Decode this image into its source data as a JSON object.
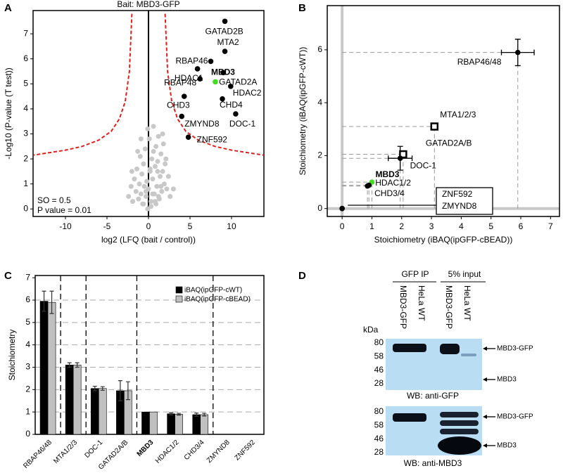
{
  "panels": [
    "A",
    "B",
    "C",
    "D"
  ],
  "chart_data": [
    {
      "type": "scatter",
      "title": "Bait: MBD3-GFP",
      "xlabel": "log2 (LFQ (bait / control))",
      "ylabel": "-Log10 (P-value (T test))",
      "xlim": [
        -13.9,
        13.9
      ],
      "ylim": [
        -0.3,
        7.93
      ],
      "xticks": [
        -10,
        -5,
        0,
        5,
        10
      ],
      "yticks": [
        0,
        1,
        2,
        3,
        4,
        5,
        6,
        7
      ],
      "annotations": [
        "SO = 0.5",
        "P value = 0.01"
      ],
      "background": {
        "color": "#c8c8c8",
        "x": [
          -2.4,
          -2.1,
          -1.9,
          -1.7,
          -1.5,
          -1.4,
          -1.2,
          -1.1,
          -1.0,
          -0.9,
          -0.8,
          -0.7,
          -0.6,
          -0.5,
          -0.4,
          -0.3,
          -0.2,
          -0.1,
          0.0,
          0.1,
          0.2,
          0.3,
          0.4,
          0.5,
          0.6,
          0.7,
          0.8,
          0.9,
          1.0,
          1.1,
          1.2,
          1.3,
          1.4,
          1.5,
          1.6,
          1.7,
          1.8,
          1.9,
          2.0,
          2.2,
          2.4,
          2.6,
          -0.6,
          0.3,
          0.5,
          0.8,
          1.2,
          1.5,
          -1.3,
          -0.9,
          0.2,
          0.9,
          1.7,
          2.1,
          -0.3,
          0.6,
          1.1,
          -2.0,
          3.0,
          -0.1
        ],
        "y": [
          0.5,
          0.9,
          0.3,
          1.2,
          0.7,
          1.6,
          0.4,
          1.0,
          2.1,
          0.6,
          1.4,
          0.2,
          1.8,
          0.9,
          2.4,
          0.5,
          1.1,
          3.2,
          0.8,
          2.8,
          1.5,
          0.3,
          2.0,
          1.2,
          3.3,
          0.6,
          1.7,
          2.5,
          0.9,
          1.9,
          2.9,
          0.4,
          1.3,
          2.2,
          0.7,
          1.5,
          2.6,
          1.0,
          1.8,
          0.8,
          1.3,
          0.5,
          0.2,
          0.1,
          0.6,
          0.3,
          0.5,
          0.9,
          2.3,
          2.8,
          1.6,
          0.2,
          3.0,
          2.0,
          0.7,
          2.3,
          1.5,
          1.5,
          0.8,
          0.0
        ]
      },
      "threshold": [
        {
          "color": "#e0201b",
          "x": [
            -2.0,
            -2.3,
            -2.8,
            -3.5,
            -4.5,
            -6,
            -8,
            -10,
            -13.9
          ],
          "y": [
            7.8,
            5.5,
            4.3,
            3.6,
            3.1,
            2.75,
            2.5,
            2.35,
            2.15
          ]
        },
        {
          "color": "#e0201b",
          "x": [
            2.0,
            2.3,
            2.8,
            3.5,
            4.5,
            6,
            8,
            10,
            13.9
          ],
          "y": [
            7.8,
            5.5,
            4.3,
            3.6,
            3.1,
            2.75,
            2.5,
            2.35,
            2.15
          ]
        }
      ],
      "hits": {
        "labels": [
          "GATAD2B",
          "MTA2",
          "RBAP46",
          "HDAC1",
          "MBD3",
          "GATAD2A",
          "RBAP48",
          "HDAC2",
          "CHD3",
          "CHD4",
          "ZMYND8",
          "DOC-1",
          "ZNF592"
        ],
        "x": [
          9.2,
          9.2,
          7.5,
          5.9,
          8.05,
          9.0,
          6.2,
          9.9,
          4.3,
          8.9,
          4.0,
          10.5,
          4.8
        ],
        "y": [
          7.5,
          6.3,
          5.9,
          5.6,
          5.08,
          5.45,
          5.2,
          4.9,
          4.5,
          4.4,
          3.7,
          3.8,
          2.87
        ],
        "colors": [
          "#000000",
          "#000000",
          "#000000",
          "#000000",
          "#44dd22",
          "#000000",
          "#000000",
          "#000000",
          "#000000",
          "#000000",
          "#000000",
          "#000000",
          "#000000"
        ]
      }
    },
    {
      "type": "scatter",
      "xlabel": "Stoichiometry (iBAQ(ipGFP-cBEAD))",
      "ylabel": "Stoichiometry (iBAQ(ipGFP-cWT))",
      "xlim": [
        -0.5,
        7.3
      ],
      "ylim": [
        -0.3,
        7.67
      ],
      "xticks": [
        0,
        1,
        2,
        3,
        4,
        5,
        6,
        7
      ],
      "yticks": [
        0,
        2,
        4,
        6
      ],
      "points": {
        "labels": [
          "RBAP46/48",
          "MTA1/2/3",
          "GATAD2A/B",
          "DOC-1",
          "MBD3",
          "HDAC1/2",
          "CHD3/4",
          "ZNF592",
          "ZMYND8"
        ],
        "x": [
          5.9,
          3.1,
          2.05,
          1.95,
          1.0,
          0.9,
          0.85,
          0,
          0
        ],
        "y": [
          5.9,
          3.1,
          2.05,
          1.9,
          1.0,
          0.88,
          0.85,
          0,
          0
        ],
        "xerr": [
          0.55,
          0.1,
          0.1,
          0.4,
          0,
          0,
          0,
          0,
          0
        ],
        "yerr": [
          0.5,
          0.08,
          0.1,
          0.45,
          0,
          0,
          0,
          0,
          0
        ],
        "markers": [
          "circle",
          "square",
          "square",
          "circle",
          "circle",
          "circle",
          "circle",
          "circle",
          "circle"
        ],
        "colors": [
          "#000000",
          "#000000",
          "#000000",
          "#000000",
          "#44dd22",
          "#000000",
          "#000000",
          "#000000",
          "#000000"
        ]
      }
    },
    {
      "type": "bar",
      "ylabel": "Stoichiometry",
      "categories": [
        "RBAP46/48",
        "MTA1/2/3",
        "DOC-1",
        "GATAD2A/B",
        "MBD3",
        "HDAC1/2",
        "CHD3/4",
        "ZMYND8",
        "ZNF592"
      ],
      "category_colors": [
        "#000000",
        "#000000",
        "#000000",
        "#000000",
        "#44dd22",
        "#000000",
        "#000000",
        "#000000",
        "#000000"
      ],
      "ylim": [
        0,
        7.1
      ],
      "yticks": [
        0,
        1,
        2,
        3,
        4,
        5,
        6,
        7
      ],
      "grid": true,
      "series": [
        {
          "name": "iBAQ(ipGFP-cWT)",
          "color": "#000000",
          "values": [
            5.95,
            3.1,
            2.05,
            1.95,
            1.0,
            0.92,
            0.88,
            0,
            0
          ],
          "errors": [
            0.45,
            0.1,
            0.1,
            0.45,
            0,
            0.05,
            0.07,
            0,
            0
          ]
        },
        {
          "name": "iBAQ(ipGFP-cBEAD)",
          "color": "#c0c0c0",
          "values": [
            5.9,
            3.1,
            2.05,
            1.95,
            1.0,
            0.9,
            0.88,
            0,
            0
          ],
          "errors": [
            0.5,
            0.1,
            0.08,
            0.4,
            0,
            0.04,
            0.06,
            0,
            0
          ]
        }
      ]
    }
  ],
  "blot": {
    "groups": [
      "GFP IP",
      "5% input"
    ],
    "lanes": [
      "MBD3-GFP",
      "HeLa WT",
      "MBD3-GFP",
      "HeLa WT"
    ],
    "unit": "kDa",
    "markers": [
      80,
      58,
      46,
      28
    ],
    "blots": [
      {
        "caption": "WB: anti-GFP",
        "bands": [
          "MBD3-GFP",
          "MBD3"
        ]
      },
      {
        "caption": "WB: anti-MBD3",
        "bands": [
          "MBD3-GFP",
          "MBD3"
        ]
      }
    ]
  }
}
